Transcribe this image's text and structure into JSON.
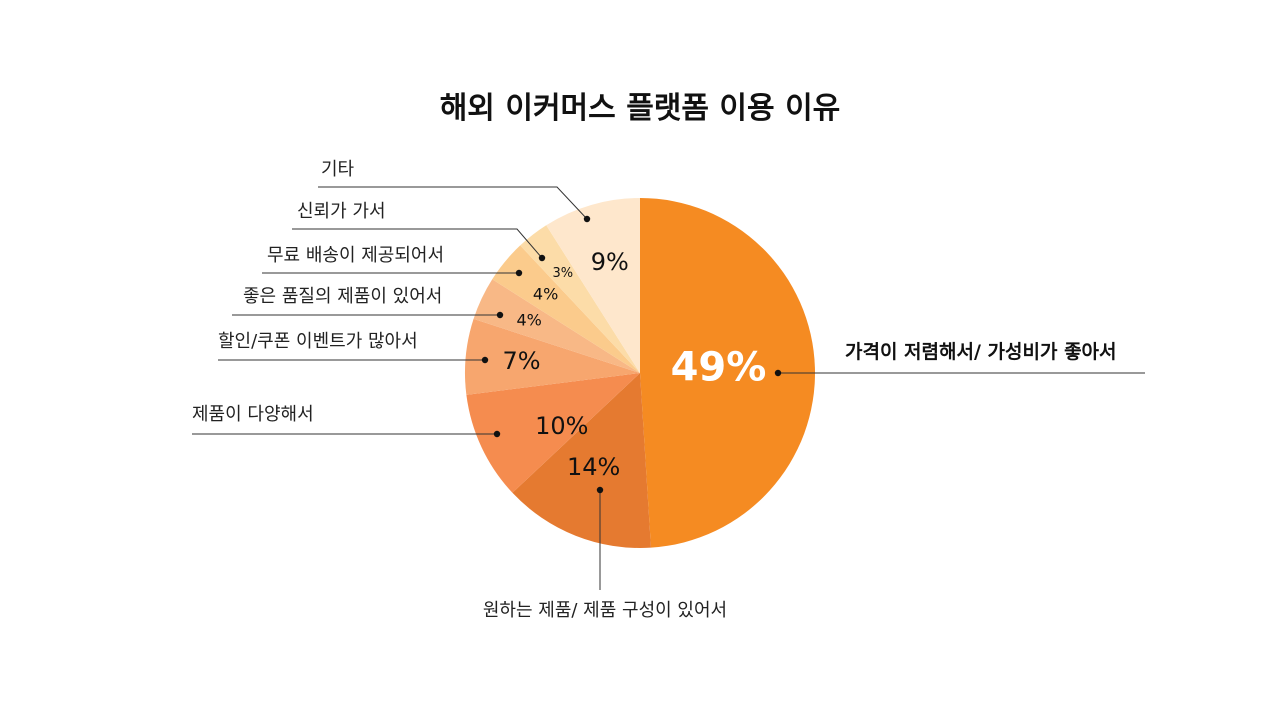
{
  "chart_data": {
    "type": "pie",
    "title": "해외 이커머스 플랫폼 이용 이유",
    "slices": [
      {
        "label": "가격이 저렴해서/ 가성비가 좋아서",
        "value": 49,
        "value_label": "49%",
        "color": "#F58B22"
      },
      {
        "label": "원하는 제품/ 제품 구성이 있어서",
        "value": 14,
        "value_label": "14%",
        "color": "#E57A30"
      },
      {
        "label": "제품이 다양해서",
        "value": 10,
        "value_label": "10%",
        "color": "#F58C4F"
      },
      {
        "label": "할인/쿠폰 이벤트가 많아서",
        "value": 7,
        "value_label": "7%",
        "color": "#F7A66E"
      },
      {
        "label": "좋은 품질의 제품이 있어서",
        "value": 4,
        "value_label": "4%",
        "color": "#F8B886"
      },
      {
        "label": "무료 배송이 제공되어서",
        "value": 4,
        "value_label": "4%",
        "color": "#FBCB8C"
      },
      {
        "label": "신뢰가 가서",
        "value": 3,
        "value_label": "3%",
        "color": "#FCDCA8"
      },
      {
        "label": "기타",
        "value": 9,
        "value_label": "9%",
        "color": "#FEE7CC"
      }
    ],
    "legend": "none",
    "start_angle": "12 o'clock",
    "direction": "clockwise"
  }
}
